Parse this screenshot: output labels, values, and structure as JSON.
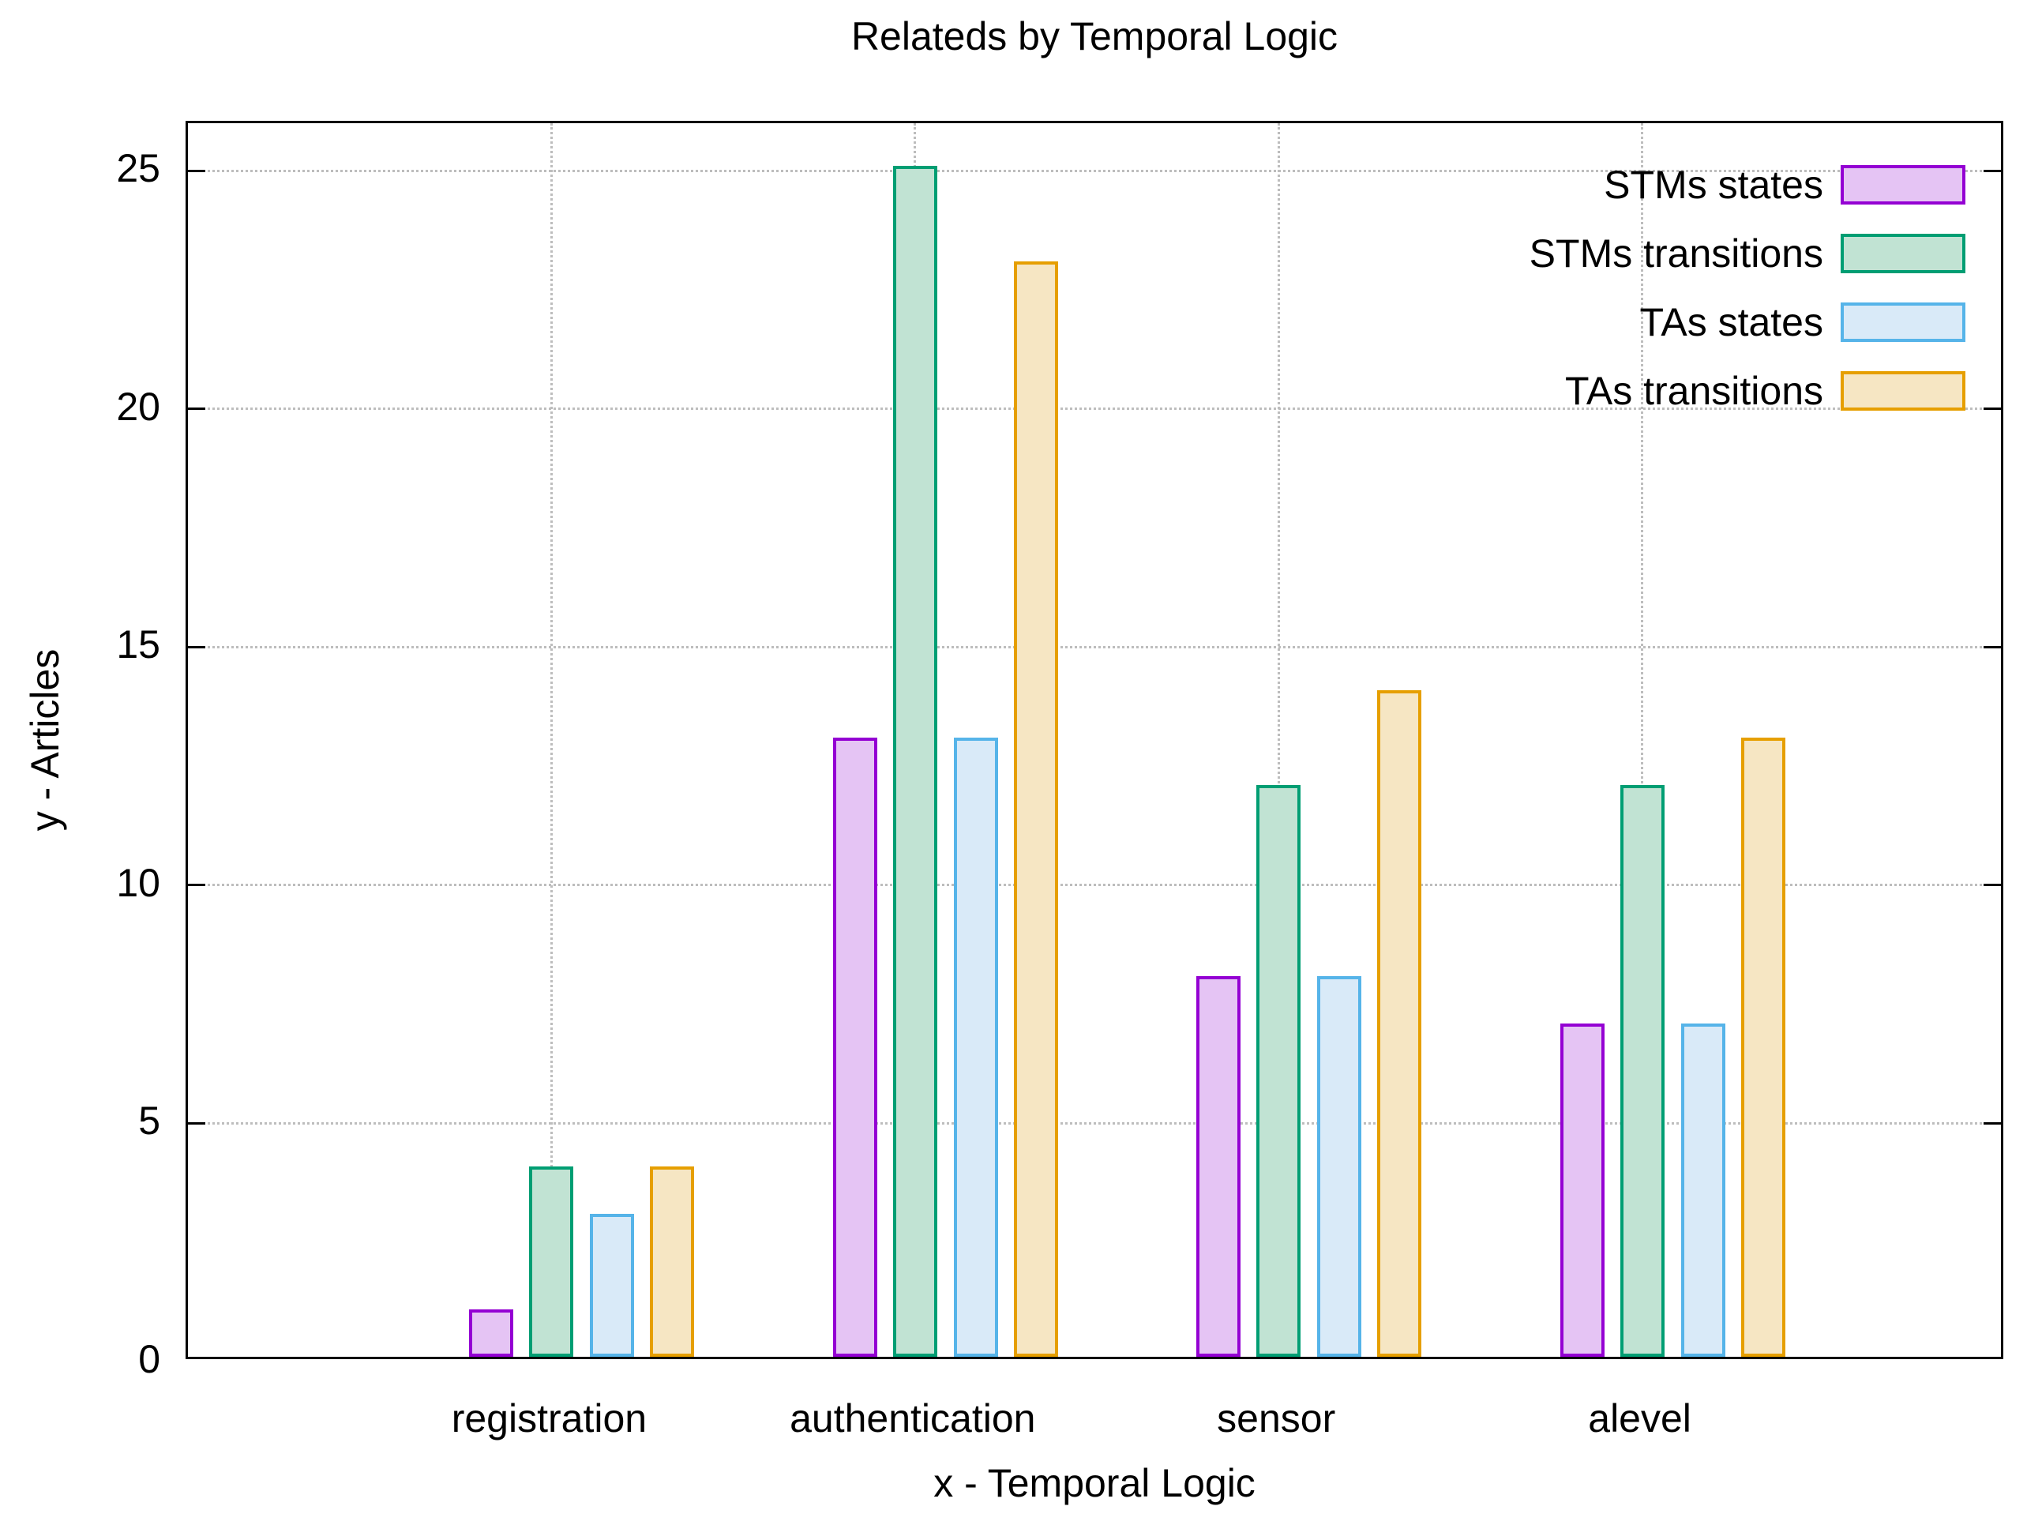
{
  "title": "Relateds by Temporal Logic",
  "chart_data": {
    "type": "bar",
    "title": "Relateds by Temporal Logic",
    "xlabel": "x - Temporal Logic",
    "ylabel": "y - Articles",
    "categories": [
      "registration",
      "authentication",
      "sensor",
      "alevel"
    ],
    "series": [
      {
        "name": "STMs states",
        "color": "#9400d3",
        "fill": "#e5c4f4",
        "values": [
          1,
          13,
          8,
          7
        ]
      },
      {
        "name": "STMs transitions",
        "color": "#009e73",
        "fill": "#c1e3d3",
        "values": [
          4,
          25,
          12,
          12
        ]
      },
      {
        "name": "TAs states",
        "color": "#56b4e9",
        "fill": "#d9eaf8",
        "values": [
          3,
          13,
          8,
          7
        ]
      },
      {
        "name": "TAs transitions",
        "color": "#e69f00",
        "fill": "#f6e6c3",
        "values": [
          4,
          23,
          14,
          13
        ]
      }
    ],
    "yticks": [
      0,
      5,
      10,
      15,
      20,
      25
    ],
    "ylim": [
      0,
      26
    ],
    "grid": true,
    "legend_position": "top-right",
    "colors": {
      "border": "#000000",
      "gridline": "#bdbdbd",
      "background": "#ffffff"
    }
  }
}
